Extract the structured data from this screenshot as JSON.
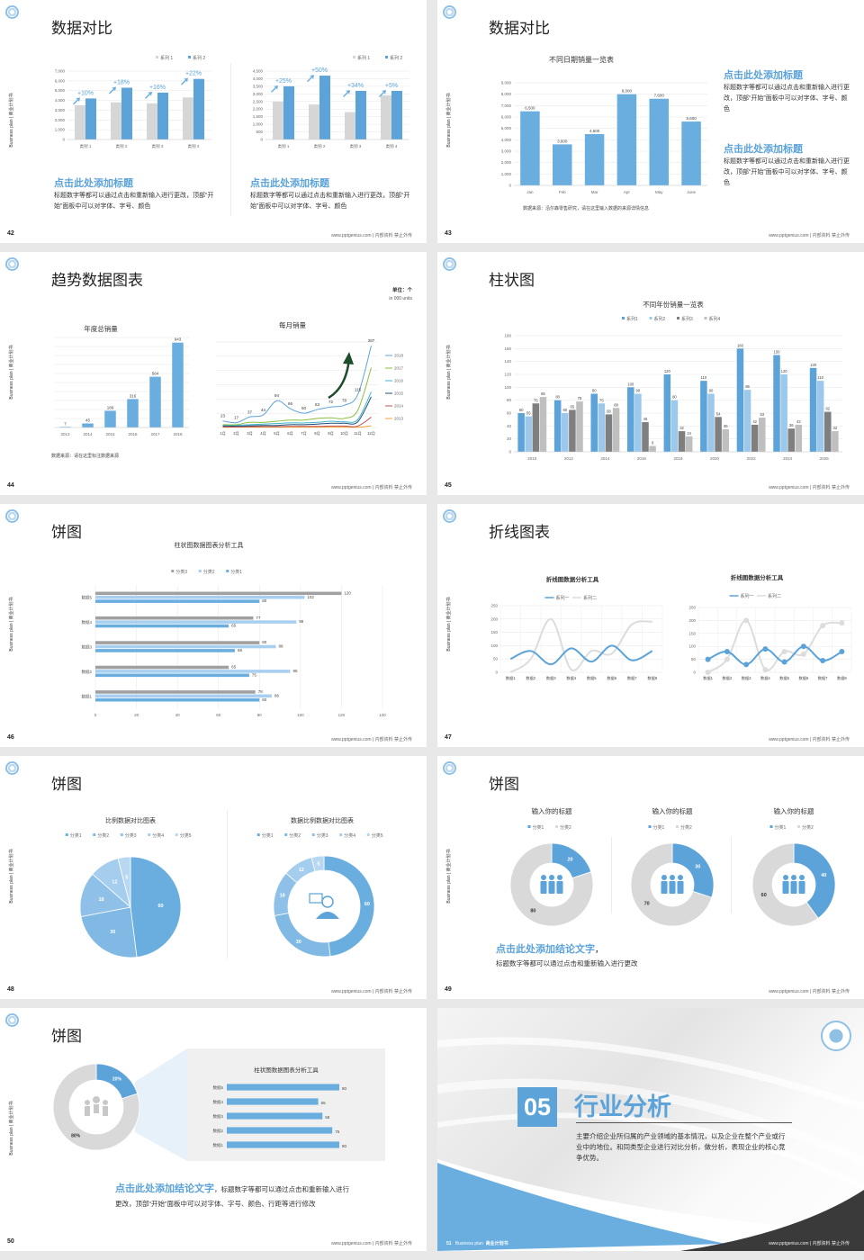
{
  "common": {
    "side_text": "Business plan | 商业计划书",
    "footer": "www.pptgenius.com | 内部资料 禁止外传"
  },
  "slides": [
    {
      "page": "42",
      "title": "数据对比",
      "left": {
        "heading": "点击此处添加标题",
        "body": "标题数字等都可以通过点击和重新输入进行更改，顶部“开始”面板中可以对字体、字号、颜色"
      },
      "right": {
        "heading": "点击此处添加标题",
        "body": "标题数字等都可以通过点击和重新输入进行更改，顶部“开始”面板中可以对字体、字号、颜色"
      }
    },
    {
      "page": "43",
      "title": "数据对比",
      "source": "数据来源：沿尔森零售研究，请在这里输入数据的来源详情信息",
      "blocks": [
        {
          "heading": "点击此处添加标题",
          "body": "标题数字等都可以通过点击和重新输入进行更改，顶部“开始”面板中可以对字体、字号、颜色"
        },
        {
          "heading": "点击此处添加标题",
          "body": "标题数字等都可以通过点击和重新输入进行更改，顶部“开始”面板中可以对字体、字号、颜色"
        }
      ]
    },
    {
      "page": "44",
      "title": "趋势数据图表",
      "unit": "单位：个",
      "unit_en": "in 000 units",
      "source": "数据来源：请在这里标注数据来源"
    },
    {
      "page": "45",
      "title": "柱状图"
    },
    {
      "page": "46",
      "title": "饼图"
    },
    {
      "page": "47",
      "title": "折线图表"
    },
    {
      "page": "48",
      "title": "饼图"
    },
    {
      "page": "49",
      "title": "饼图",
      "conclusion_heading": "点击此处添加结论文字",
      "conclusion_comma": "，",
      "conclusion_body": "标题数字等都可以通过点击和重新输入进行更改"
    },
    {
      "page": "50",
      "title": "饼图",
      "conclusion_heading": "点击此处添加结论文字",
      "conclusion_line1": "，标题数字等都可以通过点击和重新输入进行",
      "conclusion_line2": "更改，顶部“开始”面板中可以对字体、字号、颜色、行距等进行修改"
    },
    {
      "page": "51",
      "section_number": "05",
      "section_title": "行业分析",
      "section_body": "主要介绍企业所归属的产业领域的基本情况，以及企业在整个产业或行业中的地位。和同类型企业进行对比分析，做分析，表现企业的核心竞争优势。",
      "footer_label": "Business plan",
      "footer_cn": "商业计划书"
    }
  ],
  "colors": {
    "accent": "#5ba3d9",
    "light_blue": "#9cc8eb",
    "gray": "#d0d0d0",
    "dark_gray": "#7f7f7f",
    "dark": "#3a3a3a"
  },
  "chart_data": [
    {
      "type": "bar",
      "categories": [
        "类别 1",
        "类别 2",
        "类别 3",
        "类别 4"
      ],
      "series": [
        {
          "name": "系列 1",
          "values": [
            3500,
            3800,
            3700,
            4300
          ],
          "color": "#d6d6d6"
        },
        {
          "name": "系列 2",
          "values": [
            4200,
            5300,
            4800,
            6200
          ],
          "color": "#5ba3d9"
        }
      ],
      "ylim": [
        0,
        7000
      ],
      "ystep": 1000,
      "annotations": [
        "+10%",
        "+18%",
        "+16%",
        "+22%"
      ],
      "grid": true,
      "legend": "top-right"
    },
    {
      "type": "bar",
      "categories": [
        "类别 1",
        "类别 2",
        "类别 3",
        "类别 4"
      ],
      "series": [
        {
          "name": "系列 1",
          "values": [
            2500,
            2300,
            1800,
            2900
          ],
          "color": "#d6d6d6"
        },
        {
          "name": "系列 2",
          "values": [
            3500,
            4200,
            3200,
            3200
          ],
          "color": "#5ba3d9"
        }
      ],
      "ylim": [
        0,
        4500
      ],
      "ystep": 500,
      "annotations": [
        "+25%",
        "+50%",
        "+34%",
        "+5%"
      ],
      "grid": true,
      "legend": "top-right"
    },
    {
      "type": "bar",
      "title": "不同日期销量一览表",
      "categories": [
        "Jan",
        "Feb",
        "Mar",
        "Apr",
        "May",
        "June"
      ],
      "series": [
        {
          "values": [
            6500,
            3600,
            4500,
            8000,
            7600,
            5600
          ],
          "color": "#6aaee0"
        }
      ],
      "ylim": [
        0,
        9000
      ],
      "ystep": 1000,
      "data_labels": true,
      "grid": true
    },
    {
      "type": "bar",
      "title": "年度总销量",
      "categories": [
        "2013",
        "2014",
        "2015",
        "2016",
        "2017",
        "2018"
      ],
      "series": [
        {
          "values": [
            7,
            45,
            186,
            316,
            564,
            943
          ],
          "color": "#6aaee0"
        }
      ],
      "ylim": [
        0,
        1000
      ],
      "ystep": 100,
      "data_labels": true,
      "yticks_hidden": true,
      "grid": true
    },
    {
      "type": "line",
      "title": "每月销量",
      "categories": [
        "1月",
        "2月",
        "3月",
        "4月",
        "5月",
        "6月",
        "7月",
        "8月",
        "9月",
        "10月",
        "11月",
        "12月"
      ],
      "ylim": [
        0,
        300
      ],
      "ystep": 50,
      "smooth": true,
      "legend": "right",
      "grid": true,
      "series": [
        {
          "name": "2018",
          "color": "#5ba3d9",
          "values": [
            23,
            17,
            37,
            44,
            94,
            66,
            50,
            63,
            72,
            78,
            115,
            287
          ],
          "labels": true
        },
        {
          "name": "2017",
          "color": "#8bbf3f",
          "values": [
            10,
            10,
            18,
            18,
            22,
            26,
            26,
            32,
            34,
            32,
            60,
            210
          ]
        },
        {
          "name": "2016",
          "color": "#3cb5c9",
          "values": [
            8,
            8,
            10,
            12,
            14,
            16,
            16,
            18,
            22,
            20,
            28,
            125
          ]
        },
        {
          "name": "2015",
          "color": "#1f4e79",
          "values": [
            5,
            5,
            6,
            7,
            7,
            10,
            10,
            12,
            15,
            15,
            20,
            108
          ]
        },
        {
          "name": "2014",
          "color": "#c0504d",
          "values": [
            2,
            2,
            3,
            3,
            3,
            4,
            4,
            4,
            5,
            5,
            5,
            36
          ]
        },
        {
          "name": "2013",
          "color": "#f0a030",
          "values": [
            1,
            1,
            1,
            1,
            1,
            1,
            1,
            1,
            1,
            1,
            1,
            6
          ]
        }
      ]
    },
    {
      "type": "bar",
      "title": "不同年份销量一览表",
      "categories": [
        "2010",
        "2012",
        "2014",
        "2016",
        "2018",
        "2020",
        "2022",
        "2024",
        "2026"
      ],
      "ylim": [
        0,
        180
      ],
      "ystep": 20,
      "data_labels": true,
      "legend": "top",
      "grid": true,
      "series": [
        {
          "name": "系列1",
          "color": "#5ba3d9",
          "values": [
            60,
            80,
            90,
            100,
            120,
            110,
            160,
            150,
            130
          ]
        },
        {
          "name": "系列2",
          "color": "#9cc8eb",
          "values": [
            55,
            60,
            75,
            90,
            80,
            90,
            96,
            120,
            110
          ]
        },
        {
          "name": "系列3",
          "color": "#7f7f7f",
          "values": [
            75,
            65,
            58,
            46,
            32,
            54,
            42,
            36,
            62
          ]
        },
        {
          "name": "系列4",
          "color": "#bfbfbf",
          "values": [
            85,
            78,
            68,
            9,
            24,
            35,
            53,
            42,
            32
          ]
        }
      ]
    },
    {
      "type": "hbar",
      "title": "柱状图数据图表分析工具",
      "categories": [
        "数据1",
        "数据2",
        "数据3",
        "数据4",
        "数据5"
      ],
      "xlim": [
        0,
        140
      ],
      "xstep": 20,
      "data_labels": true,
      "legend": "top",
      "grid": true,
      "series": [
        {
          "name": "分类1",
          "color": "#6aaee0",
          "values": [
            80,
            75,
            68,
            65,
            80
          ]
        },
        {
          "name": "分类2",
          "color": "#a8cff0",
          "values": [
            86,
            95,
            88,
            98,
            102
          ]
        },
        {
          "name": "分类3",
          "color": "#a0a0a0",
          "values": [
            78,
            65,
            80,
            77,
            120
          ]
        }
      ]
    },
    {
      "type": "line",
      "title": "折线图数据分析工具",
      "categories": [
        "数据1",
        "数据2",
        "数据3",
        "数据4",
        "数据5",
        "数据6",
        "数据7",
        "数据8"
      ],
      "ylim": [
        0,
        250
      ],
      "ystep": 50,
      "smooth": true,
      "legend": "top",
      "grid": true,
      "series": [
        {
          "name": "系列一",
          "color": "#5ba3d9",
          "values": [
            50,
            80,
            30,
            90,
            40,
            100,
            45,
            80
          ]
        },
        {
          "name": "系列二",
          "color": "#dcdcdc",
          "values": [
            0,
            50,
            200,
            10,
            80,
            70,
            180,
            190
          ]
        }
      ]
    },
    {
      "type": "line",
      "title": "折线图数据分析工具",
      "categories": [
        "数据1",
        "数据2",
        "数据3",
        "数据4",
        "数据5",
        "数据6",
        "数据7",
        "数据8"
      ],
      "ylim": [
        0,
        250
      ],
      "ystep": 50,
      "smooth": true,
      "markers": true,
      "legend": "top",
      "grid": true,
      "series": [
        {
          "name": "系列一",
          "color": "#5ba3d9",
          "values": [
            50,
            80,
            30,
            90,
            40,
            100,
            45,
            80
          ]
        },
        {
          "name": "系列二",
          "color": "#dcdcdc",
          "values": [
            0,
            50,
            200,
            10,
            80,
            70,
            180,
            190
          ]
        }
      ]
    },
    {
      "type": "pie",
      "title": "比例数据对比图表",
      "labels": [
        "分类1",
        "分类2",
        "分类3",
        "分类4",
        "分类5"
      ],
      "values": [
        60,
        30,
        18,
        12,
        5
      ],
      "colors": [
        "#6aaee0",
        "#80b9e4",
        "#8fc1e8",
        "#a4cdee",
        "#b8d8f2"
      ],
      "legend": "top"
    },
    {
      "type": "pie",
      "donut": true,
      "title": "数据比例数据对比图表",
      "labels": [
        "分类1",
        "分类2",
        "分类3",
        "分类4",
        "分类5"
      ],
      "values": [
        60,
        30,
        18,
        12,
        5
      ],
      "colors": [
        "#6aaee0",
        "#80b9e4",
        "#8fc1e8",
        "#a4cdee",
        "#b8d8f2"
      ],
      "legend": "top",
      "center_icon": "person-chat-icon"
    },
    {
      "type": "pie",
      "donut": true,
      "title": "输入你的标题",
      "labels": [
        "分类1",
        "分类2"
      ],
      "values": [
        20,
        80
      ],
      "colors": [
        "#5ba3d9",
        "#d9d9d9"
      ],
      "legend": "top",
      "center_icon": "group-icon"
    },
    {
      "type": "pie",
      "donut": true,
      "title": "输入你的标题",
      "labels": [
        "分类1",
        "分类2"
      ],
      "values": [
        30,
        70
      ],
      "colors": [
        "#5ba3d9",
        "#d9d9d9"
      ],
      "legend": "top",
      "center_icon": "group-icon"
    },
    {
      "type": "pie",
      "donut": true,
      "title": "输入你的标题",
      "labels": [
        "分类1",
        "分类2"
      ],
      "values": [
        40,
        60
      ],
      "colors": [
        "#5ba3d9",
        "#d9d9d9"
      ],
      "legend": "top",
      "center_icon": "group-icon"
    },
    {
      "type": "pie",
      "donut": true,
      "labels": [
        "20%",
        "80%"
      ],
      "values": [
        20,
        80
      ],
      "colors": [
        "#5ba3d9",
        "#d9d9d9"
      ],
      "center_icon": "team-icon"
    },
    {
      "type": "hbar",
      "title": "柱状图数据图表分析工具",
      "categories": [
        "数据1",
        "数据2",
        "数据3",
        "数据4",
        "数据5"
      ],
      "xlim": [
        0,
        80
      ],
      "data_labels": true,
      "series": [
        {
          "color": "#6aaee0",
          "values": [
            80,
            75,
            68,
            65,
            80
          ]
        }
      ]
    }
  ]
}
